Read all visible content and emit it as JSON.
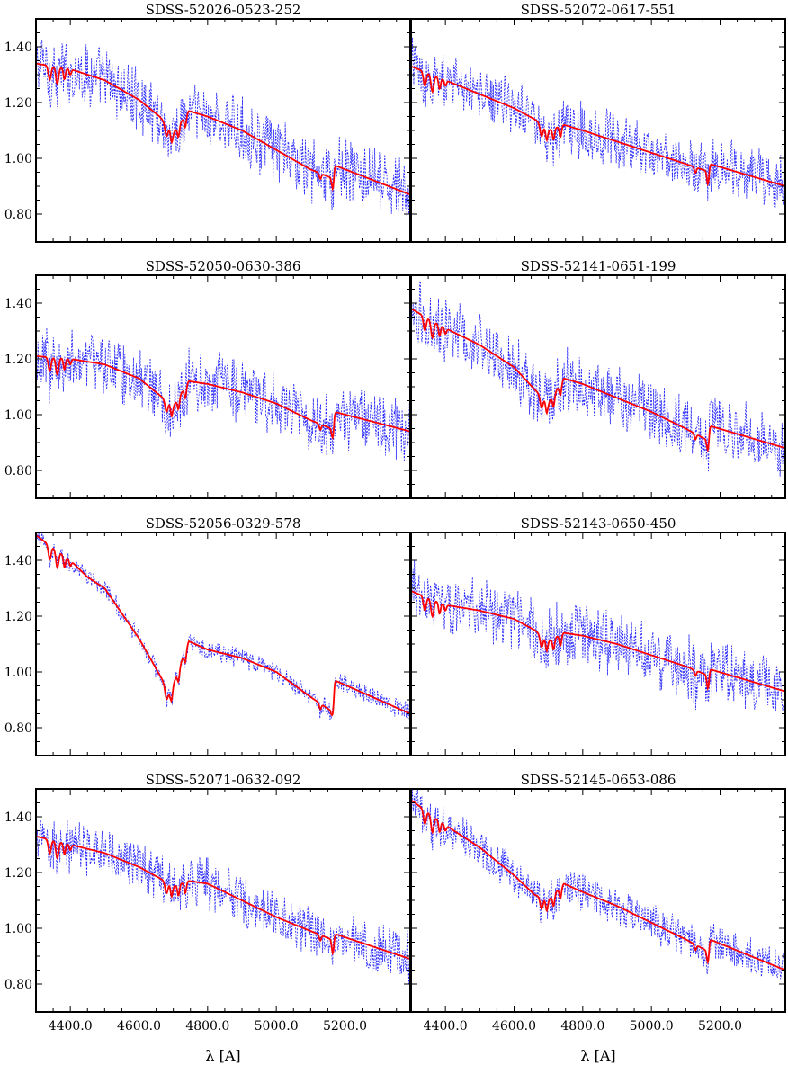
{
  "chart_data": {
    "type": "line",
    "layout": "4 rows x 2 columns, shared axes",
    "xlabel": "λ [A]",
    "ylabel": "",
    "xlim": [
      4300,
      5390
    ],
    "ylim": [
      0.7,
      1.5
    ],
    "x_ticks": [
      4400,
      4600,
      4800,
      5000,
      5200
    ],
    "x_tick_labels": [
      "4400.0",
      "4600.0",
      "4800.0",
      "5000.0",
      "5200.0"
    ],
    "y_ticks": [
      0.8,
      1.0,
      1.2,
      1.4
    ],
    "y_tick_labels": [
      "0.80",
      "1.00",
      "1.20",
      "1.40"
    ],
    "grid": false,
    "legend": "none",
    "series_styles": [
      {
        "role": "observed",
        "color": "#1f1fff",
        "style": "dotted"
      },
      {
        "role": "model",
        "color": "#ff0000",
        "style": "solid"
      }
    ],
    "panels": [
      {
        "title": "SDSS-52026-0523-252",
        "model_knots": [
          [
            4300,
            1.34
          ],
          [
            4400,
            1.32
          ],
          [
            4500,
            1.28
          ],
          [
            4600,
            1.21
          ],
          [
            4660,
            1.15
          ],
          [
            4700,
            1.09
          ],
          [
            4745,
            1.17
          ],
          [
            4800,
            1.15
          ],
          [
            4900,
            1.1
          ],
          [
            5000,
            1.03
          ],
          [
            5100,
            0.96
          ],
          [
            5160,
            0.93
          ],
          [
            5170,
            0.975
          ],
          [
            5390,
            0.87
          ]
        ],
        "noise": 0.1
      },
      {
        "title": "SDSS-52072-0617-551",
        "model_knots": [
          [
            4300,
            1.33
          ],
          [
            4400,
            1.28
          ],
          [
            4500,
            1.23
          ],
          [
            4600,
            1.18
          ],
          [
            4660,
            1.14
          ],
          [
            4700,
            1.1
          ],
          [
            4745,
            1.12
          ],
          [
            4800,
            1.1
          ],
          [
            4900,
            1.06
          ],
          [
            5000,
            1.02
          ],
          [
            5100,
            0.98
          ],
          [
            5160,
            0.955
          ],
          [
            5170,
            0.98
          ],
          [
            5390,
            0.9
          ]
        ],
        "noise": 0.09
      },
      {
        "title": "SDSS-52050-0630-386",
        "model_knots": [
          [
            4300,
            1.21
          ],
          [
            4400,
            1.2
          ],
          [
            4500,
            1.18
          ],
          [
            4600,
            1.13
          ],
          [
            4660,
            1.07
          ],
          [
            4700,
            1.03
          ],
          [
            4745,
            1.12
          ],
          [
            4800,
            1.11
          ],
          [
            4900,
            1.08
          ],
          [
            5000,
            1.04
          ],
          [
            5100,
            0.98
          ],
          [
            5160,
            0.95
          ],
          [
            5170,
            1.01
          ],
          [
            5390,
            0.94
          ]
        ],
        "noise": 0.1
      },
      {
        "title": "SDSS-52141-0651-199",
        "model_knots": [
          [
            4300,
            1.38
          ],
          [
            4400,
            1.31
          ],
          [
            4500,
            1.25
          ],
          [
            4600,
            1.17
          ],
          [
            4660,
            1.09
          ],
          [
            4700,
            1.04
          ],
          [
            4745,
            1.13
          ],
          [
            4800,
            1.11
          ],
          [
            4900,
            1.06
          ],
          [
            5000,
            1.01
          ],
          [
            5100,
            0.95
          ],
          [
            5160,
            0.91
          ],
          [
            5170,
            0.96
          ],
          [
            5390,
            0.88
          ]
        ],
        "noise": 0.1
      },
      {
        "title": "SDSS-52056-0329-578",
        "model_knots": [
          [
            4300,
            1.49
          ],
          [
            4400,
            1.4
          ],
          [
            4450,
            1.34
          ],
          [
            4500,
            1.3
          ],
          [
            4600,
            1.12
          ],
          [
            4660,
            0.99
          ],
          [
            4690,
            0.92
          ],
          [
            4745,
            1.11
          ],
          [
            4800,
            1.08
          ],
          [
            4900,
            1.05
          ],
          [
            5000,
            1.0
          ],
          [
            5100,
            0.91
          ],
          [
            5160,
            0.86
          ],
          [
            5170,
            0.97
          ],
          [
            5390,
            0.85
          ]
        ],
        "noise": 0.03
      },
      {
        "title": "SDSS-52143-0650-450",
        "model_knots": [
          [
            4300,
            1.29
          ],
          [
            4400,
            1.24
          ],
          [
            4500,
            1.22
          ],
          [
            4600,
            1.19
          ],
          [
            4660,
            1.15
          ],
          [
            4700,
            1.11
          ],
          [
            4745,
            1.14
          ],
          [
            4800,
            1.13
          ],
          [
            4900,
            1.1
          ],
          [
            5000,
            1.06
          ],
          [
            5100,
            1.02
          ],
          [
            5160,
            0.99
          ],
          [
            5170,
            1.01
          ],
          [
            5390,
            0.93
          ]
        ],
        "noise": 0.1
      },
      {
        "title": "SDSS-52071-0632-092",
        "model_knots": [
          [
            4300,
            1.33
          ],
          [
            4400,
            1.3
          ],
          [
            4500,
            1.27
          ],
          [
            4600,
            1.22
          ],
          [
            4660,
            1.18
          ],
          [
            4700,
            1.15
          ],
          [
            4745,
            1.17
          ],
          [
            4800,
            1.16
          ],
          [
            4900,
            1.1
          ],
          [
            5000,
            1.04
          ],
          [
            5100,
            0.99
          ],
          [
            5160,
            0.96
          ],
          [
            5170,
            0.98
          ],
          [
            5390,
            0.89
          ]
        ],
        "noise": 0.08
      },
      {
        "title": "SDSS-52145-0653-086",
        "model_knots": [
          [
            4300,
            1.46
          ],
          [
            4400,
            1.37
          ],
          [
            4500,
            1.29
          ],
          [
            4600,
            1.19
          ],
          [
            4660,
            1.12
          ],
          [
            4700,
            1.1
          ],
          [
            4745,
            1.16
          ],
          [
            4800,
            1.13
          ],
          [
            4900,
            1.08
          ],
          [
            5000,
            1.02
          ],
          [
            5100,
            0.96
          ],
          [
            5160,
            0.92
          ],
          [
            5170,
            0.96
          ],
          [
            5390,
            0.85
          ]
        ],
        "noise": 0.06
      }
    ]
  }
}
